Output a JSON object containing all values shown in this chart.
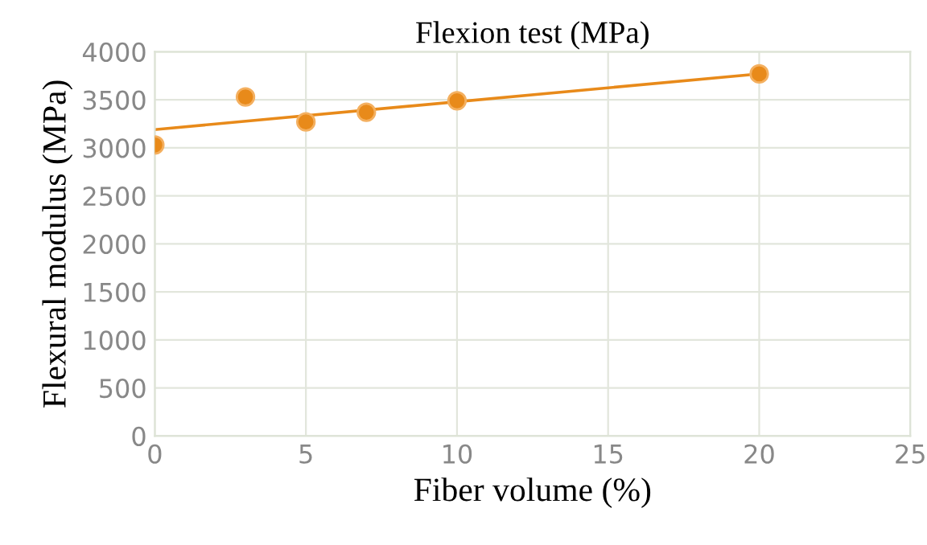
{
  "chart_data": {
    "type": "scatter",
    "title": "Flexion test (MPa)",
    "xlabel": "Fiber volume (%)",
    "ylabel": "Flexural modulus (MPa)",
    "series": [
      {
        "color": "#e88a1a",
        "x": [
          0,
          3,
          5,
          7,
          10,
          20
        ],
        "values": [
          3030,
          3530,
          3270,
          3370,
          3490,
          3770
        ],
        "marker": "circle"
      },
      {
        "type": "line",
        "color": "#e88a1a",
        "x": [
          0,
          20
        ],
        "values": [
          3190,
          3770
        ],
        "marker": "none",
        "line_style": "solid"
      }
    ],
    "xlim": [
      0,
      25
    ],
    "xticks": [
      0,
      5,
      10,
      15,
      20,
      25
    ],
    "ylim": [
      0,
      4000
    ],
    "yticks": [
      0,
      500,
      1000,
      1500,
      2000,
      2500,
      3000,
      3500,
      4000
    ],
    "grid": true,
    "legend": false
  }
}
